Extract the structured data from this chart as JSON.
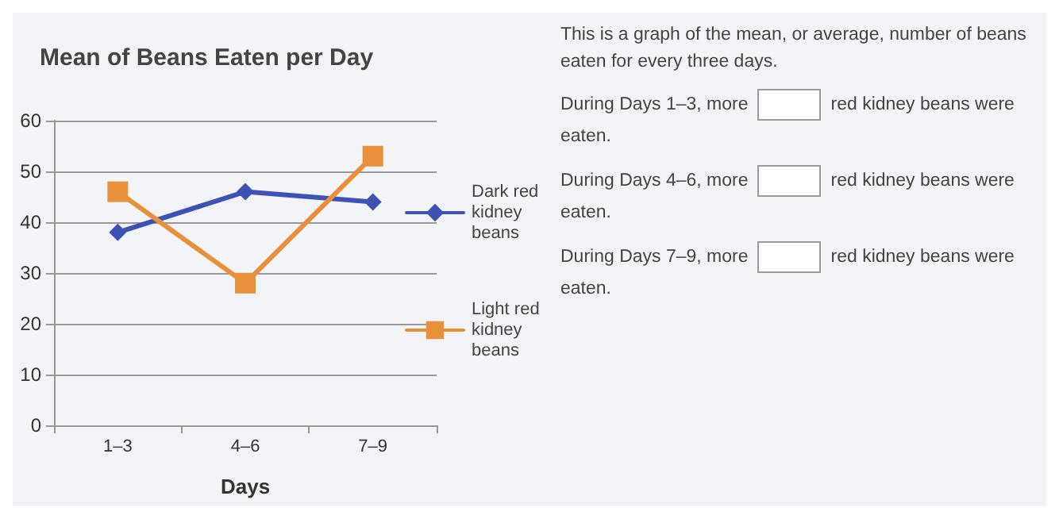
{
  "chart_data": {
    "type": "line",
    "title": "Mean of Beans Eaten per Day",
    "xlabel": "Days",
    "categories": [
      "1–3",
      "4–6",
      "7–9"
    ],
    "series": [
      {
        "name": "Dark red kidney beans",
        "color": "#3d52b4",
        "values": [
          38,
          46,
          44
        ],
        "marker": "diamond"
      },
      {
        "name": "Light red kidney beans",
        "color": "#e8913a",
        "values": [
          46,
          28,
          53
        ],
        "marker": "square"
      }
    ],
    "ylim": [
      0,
      60
    ],
    "yticks": [
      0,
      10,
      20,
      30,
      40,
      50,
      60
    ],
    "grid": "y",
    "legend": "right",
    "line_style": "solid",
    "annotations": [
      "This is a graph of the mean, or average, number of beans eaten for every three days.",
      "During Days 1–3, more",
      "red kidney beans were eaten.",
      "During Days 4–6, more",
      "red kidney beans were eaten.",
      "During Days 7–9, more",
      "red kidney beans were eaten."
    ]
  }
}
